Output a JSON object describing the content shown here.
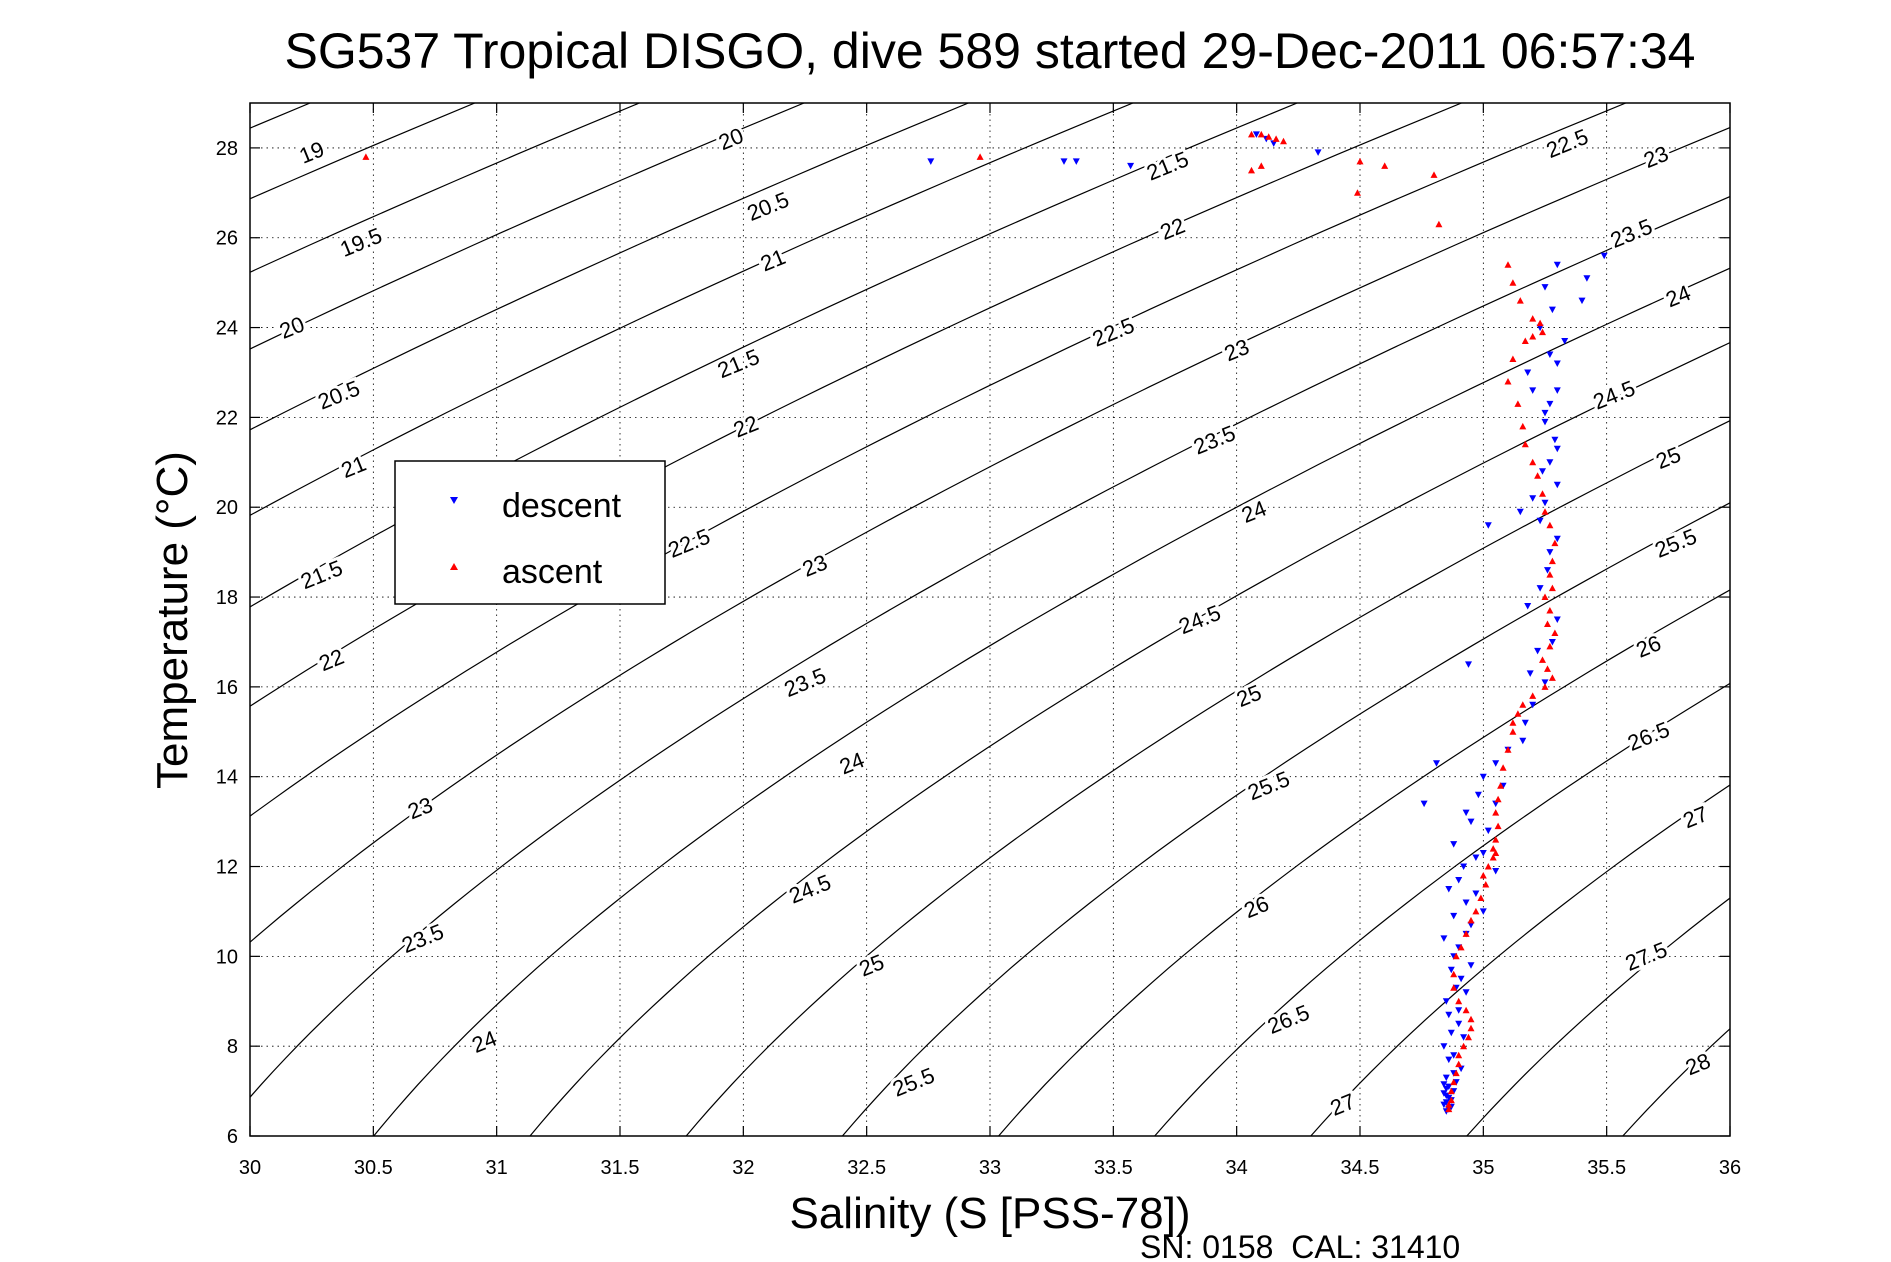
{
  "chart_data": {
    "type": "scatter",
    "title": "SG537 Tropical DISGO, dive 589 started 29-Dec-2011 06:57:34",
    "xlabel": "Salinity (S [PSS-78])",
    "ylabel": "Temperature (°C)",
    "xlim": [
      30,
      36
    ],
    "ylim": [
      6,
      29
    ],
    "x_ticks": [
      "30",
      "30.5",
      "31",
      "31.5",
      "32",
      "32.5",
      "33",
      "33.5",
      "34",
      "34.5",
      "35",
      "35.5",
      "36"
    ],
    "y_ticks": [
      "6",
      "8",
      "10",
      "12",
      "14",
      "16",
      "18",
      "20",
      "22",
      "24",
      "26",
      "28"
    ],
    "grid": true,
    "legend_position": "left-middle",
    "footer_text": "SN: 0158  CAL: 31410",
    "contour_levels": [
      18.5,
      19,
      19.5,
      20,
      20.5,
      21,
      21.5,
      22,
      22.5,
      23,
      23.5,
      24,
      24.5,
      25,
      25.5,
      26,
      26.5,
      27,
      27.5,
      28
    ],
    "contour_labels": [
      {
        "text": "19",
        "s": 30.25,
        "t": 27.9
      },
      {
        "text": "19.5",
        "s": 30.45,
        "t": 25.9
      },
      {
        "text": "20",
        "s": 30.17,
        "t": 24.0
      },
      {
        "text": "20.5",
        "s": 30.36,
        "t": 22.5
      },
      {
        "text": "21",
        "s": 30.42,
        "t": 20.9
      },
      {
        "text": "21.5",
        "s": 30.29,
        "t": 18.5
      },
      {
        "text": "22",
        "s": 30.33,
        "t": 16.6
      },
      {
        "text": "23",
        "s": 30.69,
        "t": 13.3
      },
      {
        "text": "23.5",
        "s": 30.7,
        "t": 10.4
      },
      {
        "text": "24",
        "s": 30.95,
        "t": 8.1
      },
      {
        "text": "20",
        "s": 31.95,
        "t": 28.2
      },
      {
        "text": "20.5",
        "s": 32.1,
        "t": 26.7
      },
      {
        "text": "21",
        "s": 32.12,
        "t": 25.5
      },
      {
        "text": "21.5",
        "s": 31.98,
        "t": 23.2
      },
      {
        "text": "22",
        "s": 32.01,
        "t": 21.8
      },
      {
        "text": "22.5",
        "s": 31.78,
        "t": 19.2
      },
      {
        "text": "23",
        "s": 32.29,
        "t": 18.7
      },
      {
        "text": "23.5",
        "s": 32.25,
        "t": 16.1
      },
      {
        "text": "24",
        "s": 32.44,
        "t": 14.3
      },
      {
        "text": "24.5",
        "s": 32.27,
        "t": 11.5
      },
      {
        "text": "25",
        "s": 32.52,
        "t": 9.8
      },
      {
        "text": "25.5",
        "s": 32.69,
        "t": 7.2
      },
      {
        "text": "21.5",
        "s": 33.72,
        "t": 27.6
      },
      {
        "text": "22",
        "s": 33.74,
        "t": 26.2
      },
      {
        "text": "22.5",
        "s": 33.5,
        "t": 23.9
      },
      {
        "text": "23",
        "s": 34.0,
        "t": 23.5
      },
      {
        "text": "23.5",
        "s": 33.91,
        "t": 21.5
      },
      {
        "text": "24",
        "s": 34.07,
        "t": 19.9
      },
      {
        "text": "24.5",
        "s": 33.85,
        "t": 17.5
      },
      {
        "text": "25",
        "s": 34.05,
        "t": 15.8
      },
      {
        "text": "25.5",
        "s": 34.13,
        "t": 13.8
      },
      {
        "text": "26",
        "s": 34.08,
        "t": 11.1
      },
      {
        "text": "26.5",
        "s": 34.21,
        "t": 8.6
      },
      {
        "text": "27",
        "s": 34.43,
        "t": 6.7
      },
      {
        "text": "22.5",
        "s": 35.34,
        "t": 28.1
      },
      {
        "text": "23",
        "s": 35.7,
        "t": 27.8
      },
      {
        "text": "23.5",
        "s": 35.6,
        "t": 26.1
      },
      {
        "text": "24",
        "s": 35.79,
        "t": 24.7
      },
      {
        "text": "24.5",
        "s": 35.53,
        "t": 22.5
      },
      {
        "text": "25",
        "s": 35.75,
        "t": 21.1
      },
      {
        "text": "25.5",
        "s": 35.78,
        "t": 19.2
      },
      {
        "text": "26",
        "s": 35.67,
        "t": 16.9
      },
      {
        "text": "26.5",
        "s": 35.67,
        "t": 14.9
      },
      {
        "text": "27",
        "s": 35.86,
        "t": 13.1
      },
      {
        "text": "27.5",
        "s": 35.66,
        "t": 10.0
      },
      {
        "text": "28",
        "s": 35.87,
        "t": 7.6
      }
    ],
    "series": [
      {
        "name": "descent",
        "color": "#0000ff",
        "marker": "triangle-down",
        "s": [
          34.08,
          34.12,
          34.15,
          34.33,
          33.57,
          33.35,
          33.3,
          32.76,
          35.49,
          35.42,
          35.4,
          35.33,
          35.3,
          35.3,
          35.25,
          35.29,
          35.27,
          35.3,
          35.25,
          35.23,
          35.3,
          35.27,
          35.26,
          35.23,
          35.18,
          35.3,
          35.28,
          35.02,
          35.15,
          35.2,
          35.24,
          35.3,
          35.25,
          35.27,
          35.2,
          35.18,
          35.27,
          35.23,
          35.28,
          35.25,
          35.3,
          35.22,
          35.19,
          35.25,
          34.94,
          35.2,
          35.17,
          35.16,
          35.1,
          35.05,
          35.0,
          34.81,
          35.08,
          34.98,
          35.05,
          34.93,
          34.95,
          35.02,
          34.88,
          35.0,
          34.97,
          34.76,
          34.92,
          35.05,
          34.9,
          34.86,
          34.97,
          34.93,
          35.0,
          34.88,
          34.95,
          34.93,
          34.84,
          34.9,
          34.88,
          34.95,
          34.87,
          34.91,
          34.89,
          34.93,
          34.85,
          34.9,
          34.86,
          34.9,
          34.87,
          34.92,
          34.84,
          34.88,
          34.86,
          34.91,
          34.88,
          34.85,
          34.89,
          34.86,
          34.88,
          34.85,
          34.87,
          34.84,
          34.86,
          34.85,
          34.87,
          34.85,
          34.86,
          34.84,
          34.85,
          34.84
        ],
        "t": [
          28.3,
          28.2,
          28.1,
          27.9,
          27.6,
          27.7,
          27.7,
          27.7,
          25.6,
          25.1,
          24.6,
          23.7,
          23.2,
          22.6,
          22.1,
          21.5,
          21.0,
          20.5,
          20.1,
          19.7,
          19.3,
          19.0,
          18.6,
          18.2,
          17.8,
          17.5,
          17.0,
          19.6,
          19.9,
          20.2,
          20.8,
          21.3,
          21.9,
          22.3,
          22.6,
          23.0,
          23.4,
          24.0,
          24.4,
          24.9,
          25.4,
          16.8,
          16.3,
          16.1,
          16.5,
          15.6,
          15.2,
          14.8,
          14.6,
          14.3,
          14.0,
          14.3,
          13.8,
          13.6,
          13.4,
          13.2,
          13.0,
          12.8,
          12.5,
          12.3,
          12.2,
          13.4,
          12.0,
          11.9,
          11.7,
          11.5,
          11.4,
          11.2,
          11.0,
          10.9,
          10.7,
          10.5,
          10.4,
          10.2,
          10.0,
          9.8,
          9.7,
          9.5,
          9.3,
          9.2,
          9.0,
          8.8,
          8.7,
          8.5,
          8.3,
          8.2,
          8.0,
          7.8,
          7.7,
          7.5,
          7.4,
          7.3,
          7.2,
          7.1,
          7.0,
          6.9,
          6.8,
          6.7,
          6.6,
          6.55,
          6.65,
          6.75,
          6.85,
          6.95,
          7.05,
          7.15
        ]
      },
      {
        "name": "ascent",
        "color": "#ff0000",
        "marker": "triangle-up",
        "s": [
          30.47,
          32.96,
          34.06,
          34.1,
          34.13,
          34.16,
          34.19,
          34.1,
          34.06,
          34.5,
          34.6,
          34.8,
          34.49,
          34.82,
          35.1,
          35.12,
          35.15,
          35.2,
          35.23,
          35.24,
          35.2,
          35.17,
          35.12,
          35.1,
          35.14,
          35.16,
          35.17,
          35.2,
          35.22,
          35.24,
          35.25,
          35.27,
          35.29,
          35.28,
          35.27,
          35.28,
          35.25,
          35.27,
          35.26,
          35.29,
          35.27,
          35.24,
          35.26,
          35.28,
          35.25,
          35.2,
          35.16,
          35.14,
          35.12,
          35.12,
          35.1,
          35.08,
          35.07,
          35.06,
          35.05,
          35.06,
          35.05,
          35.04,
          35.05,
          35.04,
          35.02,
          35.0,
          35.01,
          34.99,
          34.97,
          34.95,
          34.93,
          34.91,
          34.89,
          34.88,
          34.88,
          34.9,
          34.93,
          34.95,
          34.95,
          34.94,
          34.92,
          34.9,
          34.9,
          34.89,
          34.88,
          34.87,
          34.87,
          34.86,
          34.86
        ],
        "t": [
          27.8,
          27.8,
          28.3,
          28.3,
          28.25,
          28.2,
          28.15,
          27.6,
          27.5,
          27.7,
          27.6,
          27.4,
          27.0,
          26.3,
          25.4,
          25.0,
          24.6,
          24.2,
          24.1,
          23.9,
          23.8,
          23.7,
          23.3,
          22.8,
          22.3,
          21.8,
          21.4,
          21.0,
          20.7,
          20.3,
          19.9,
          19.6,
          19.2,
          18.8,
          18.5,
          18.2,
          18.0,
          17.7,
          17.4,
          17.2,
          16.9,
          16.6,
          16.4,
          16.2,
          16.0,
          15.8,
          15.6,
          15.4,
          15.2,
          15.0,
          14.6,
          14.2,
          13.8,
          13.5,
          13.2,
          12.9,
          12.6,
          12.4,
          12.3,
          12.2,
          12.0,
          11.8,
          11.6,
          11.3,
          11.0,
          10.8,
          10.5,
          10.2,
          10.0,
          9.6,
          9.3,
          9.0,
          8.8,
          8.6,
          8.4,
          8.2,
          8.0,
          7.8,
          7.6,
          7.4,
          7.2,
          7.0,
          6.8,
          6.7,
          6.6
        ]
      }
    ]
  }
}
